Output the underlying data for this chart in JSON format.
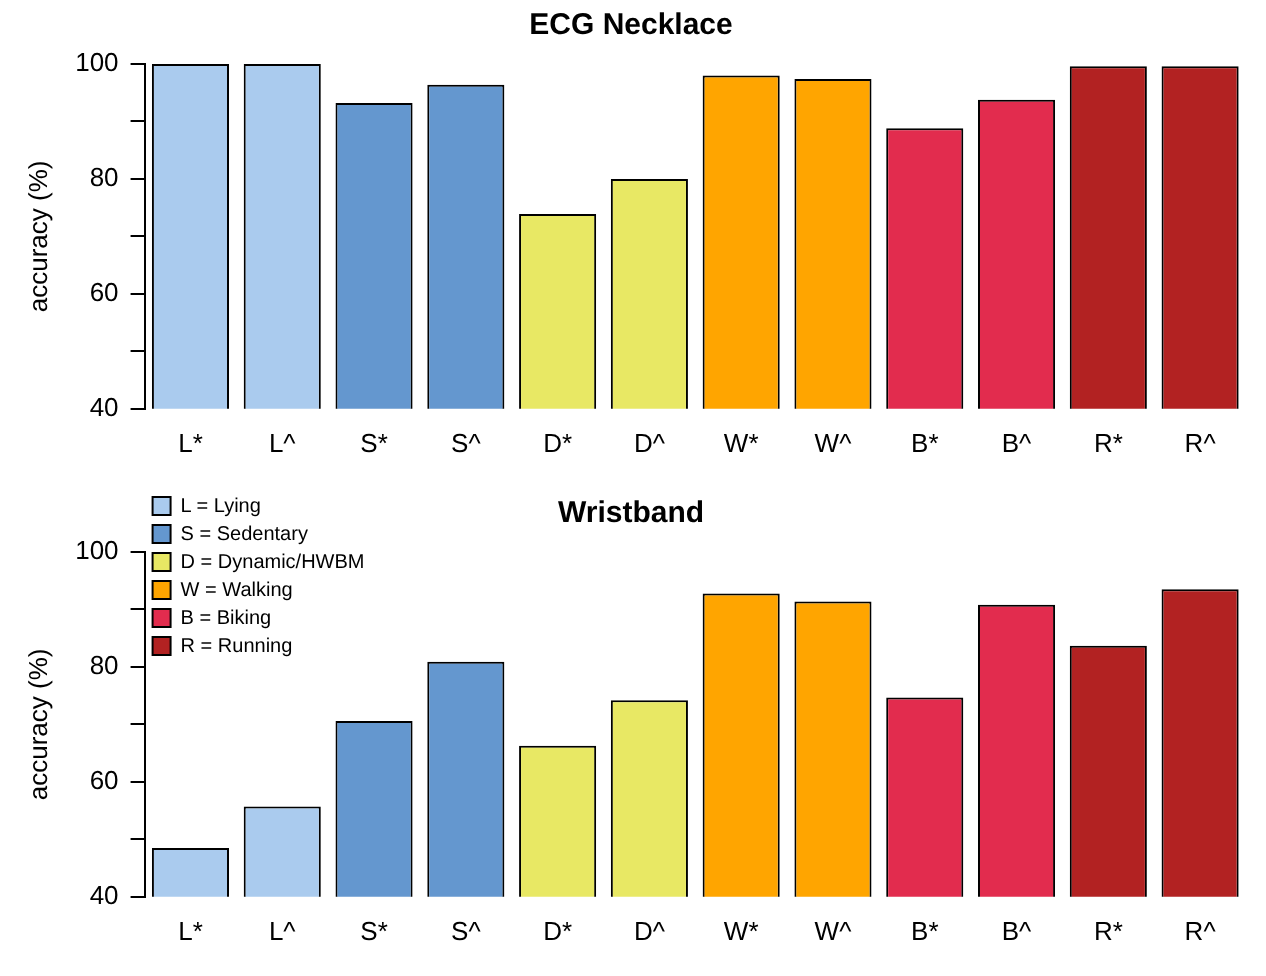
{
  "chart_data": [
    {
      "type": "bar",
      "title": "ECG Necklace",
      "ylabel": "accuracy (%)",
      "categories": [
        "L*",
        "L^",
        "S*",
        "S^",
        "D*",
        "D^",
        "W*",
        "W^",
        "B*",
        "B^",
        "R*",
        "R^"
      ],
      "series": [
        {
          "color": "#aacbee",
          "values": [
            100,
            100,
            null,
            null,
            null,
            null,
            null,
            null,
            null,
            null,
            null,
            null
          ]
        },
        {
          "color": "#6497cf",
          "values": [
            null,
            null,
            93.2,
            96.4,
            null,
            null,
            null,
            null,
            null,
            null,
            null,
            null
          ]
        },
        {
          "color": "#e8e864",
          "values": [
            null,
            null,
            null,
            null,
            73.9,
            80,
            null,
            null,
            null,
            null,
            null,
            null
          ]
        },
        {
          "color": "#ffa500",
          "values": [
            null,
            null,
            null,
            null,
            null,
            null,
            98,
            97.4,
            null,
            null,
            null,
            null
          ]
        },
        {
          "color": "#e22c4e",
          "values": [
            null,
            null,
            null,
            null,
            null,
            null,
            null,
            null,
            88.8,
            93.8,
            null,
            null
          ]
        },
        {
          "color": "#b22222",
          "values": [
            null,
            null,
            null,
            null,
            null,
            null,
            null,
            null,
            null,
            null,
            99.6,
            99.6
          ]
        }
      ],
      "ylim": [
        40,
        100
      ],
      "yticks": [
        40,
        {
          "value": 50,
          "label": null
        },
        60,
        {
          "value": 70,
          "label": null
        },
        80,
        {
          "value": 90,
          "label": null
        },
        100
      ],
      "grid": false,
      "legend": false
    },
    {
      "type": "bar",
      "title": "Wristband",
      "ylabel": "accuracy (%)",
      "categories": [
        "L*",
        "L^",
        "S*",
        "S^",
        "D*",
        "D^",
        "W*",
        "W^",
        "B*",
        "B^",
        "R*",
        "R^"
      ],
      "series": [
        {
          "name": "L = Lying",
          "color": "#aacbee",
          "values": [
            48.5,
            55.7,
            null,
            null,
            null,
            null,
            null,
            null,
            null,
            null,
            null,
            null
          ]
        },
        {
          "name": "S = Sedentary",
          "color": "#6497cf",
          "values": [
            null,
            null,
            70.6,
            80.9,
            null,
            null,
            null,
            null,
            null,
            null,
            null,
            null
          ]
        },
        {
          "name": "D = Dynamic/HWBM",
          "color": "#e8e864",
          "values": [
            null,
            null,
            null,
            null,
            66.3,
            74.2,
            null,
            null,
            null,
            null,
            null,
            null
          ]
        },
        {
          "name": "W = Walking",
          "color": "#ffa500",
          "values": [
            null,
            null,
            null,
            null,
            null,
            null,
            92.8,
            91.4,
            null,
            null,
            null,
            null
          ]
        },
        {
          "name": "B = Biking",
          "color": "#e22c4e",
          "values": [
            null,
            null,
            null,
            null,
            null,
            null,
            null,
            null,
            74.7,
            90.8,
            null,
            null
          ]
        },
        {
          "name": "R = Running",
          "color": "#b22222",
          "values": [
            null,
            null,
            null,
            null,
            null,
            null,
            null,
            null,
            null,
            null,
            83.7,
            93.5
          ]
        }
      ],
      "ylim": [
        40,
        100
      ],
      "yticks": [
        40,
        {
          "value": 50,
          "label": null
        },
        60,
        {
          "value": 70,
          "label": null
        },
        80,
        {
          "value": 90,
          "label": null
        },
        100
      ],
      "grid": false,
      "legend": "top left"
    }
  ]
}
